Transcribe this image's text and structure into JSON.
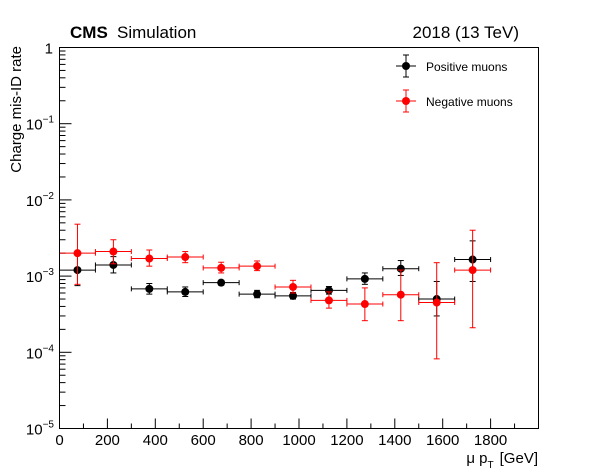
{
  "header": {
    "experiment": "CMS",
    "label": "Simulation",
    "condition": "2018 (13 TeV)"
  },
  "chart_data": {
    "type": "scatter",
    "title": "",
    "xlabel": "μ p",
    "xlabel_sub": "T",
    "xunit": "[GeV]",
    "ylabel": "Charge mis-ID rate",
    "xlim": [
      0,
      2000
    ],
    "ylim": [
      1e-05,
      1
    ],
    "yscale": "log",
    "grid": false,
    "legend_position": "top-right",
    "x_ticks": [
      0,
      200,
      400,
      600,
      800,
      1000,
      1200,
      1400,
      1600,
      1800
    ],
    "y_tick_labels": [
      {
        "value": 1e-05,
        "base": "10",
        "exp": "−5"
      },
      {
        "value": 0.0001,
        "base": "10",
        "exp": "−4"
      },
      {
        "value": 0.001,
        "base": "10",
        "exp": "−3"
      },
      {
        "value": 0.01,
        "base": "10",
        "exp": "−2"
      },
      {
        "value": 0.1,
        "base": "10",
        "exp": "−1"
      },
      {
        "value": 1,
        "base": "1",
        "exp": ""
      }
    ],
    "series": [
      {
        "name": "Positive muons",
        "color": "#000000",
        "points": [
          {
            "x": 75,
            "xlo": 0,
            "xhi": 150,
            "y": 0.0012,
            "ylo": 0.00075,
            "yhi": 0.002
          },
          {
            "x": 225,
            "xlo": 150,
            "xhi": 300,
            "y": 0.0014,
            "ylo": 0.0011,
            "yhi": 0.0018
          },
          {
            "x": 375,
            "xlo": 300,
            "xhi": 450,
            "y": 0.00068,
            "ylo": 0.00058,
            "yhi": 0.0008
          },
          {
            "x": 525,
            "xlo": 450,
            "xhi": 600,
            "y": 0.00062,
            "ylo": 0.00054,
            "yhi": 0.00072
          },
          {
            "x": 675,
            "xlo": 600,
            "xhi": 750,
            "y": 0.00082,
            "ylo": 0.00076,
            "yhi": 0.00088
          },
          {
            "x": 825,
            "xlo": 750,
            "xhi": 900,
            "y": 0.00058,
            "ylo": 0.00052,
            "yhi": 0.00065
          },
          {
            "x": 975,
            "xlo": 900,
            "xhi": 1050,
            "y": 0.00055,
            "ylo": 0.0005,
            "yhi": 0.00061
          },
          {
            "x": 1125,
            "xlo": 1050,
            "xhi": 1200,
            "y": 0.00065,
            "ylo": 0.00058,
            "yhi": 0.00073
          },
          {
            "x": 1275,
            "xlo": 1200,
            "xhi": 1350,
            "y": 0.00092,
            "ylo": 0.00078,
            "yhi": 0.0011
          },
          {
            "x": 1425,
            "xlo": 1350,
            "xhi": 1500,
            "y": 0.00125,
            "ylo": 0.00102,
            "yhi": 0.0016
          },
          {
            "x": 1575,
            "xlo": 1500,
            "xhi": 1650,
            "y": 0.0005,
            "ylo": 0.0003,
            "yhi": 0.00085
          },
          {
            "x": 1725,
            "xlo": 1650,
            "xhi": 1800,
            "y": 0.00165,
            "ylo": 0.00085,
            "yhi": 0.0029
          }
        ]
      },
      {
        "name": "Negative muons",
        "color": "#ff0000",
        "points": [
          {
            "x": 75,
            "xlo": 0,
            "xhi": 150,
            "y": 0.002,
            "ylo": 0.00078,
            "yhi": 0.0048
          },
          {
            "x": 225,
            "xlo": 150,
            "xhi": 300,
            "y": 0.0021,
            "ylo": 0.00145,
            "yhi": 0.003
          },
          {
            "x": 375,
            "xlo": 300,
            "xhi": 450,
            "y": 0.0017,
            "ylo": 0.00135,
            "yhi": 0.0022
          },
          {
            "x": 525,
            "xlo": 450,
            "xhi": 600,
            "y": 0.00178,
            "ylo": 0.0015,
            "yhi": 0.0021
          },
          {
            "x": 675,
            "xlo": 600,
            "xhi": 750,
            "y": 0.00128,
            "ylo": 0.0011,
            "yhi": 0.00152
          },
          {
            "x": 825,
            "xlo": 750,
            "xhi": 900,
            "y": 0.00135,
            "ylo": 0.00118,
            "yhi": 0.00158
          },
          {
            "x": 975,
            "xlo": 900,
            "xhi": 1050,
            "y": 0.00072,
            "ylo": 0.0006,
            "yhi": 0.00088
          },
          {
            "x": 1125,
            "xlo": 1050,
            "xhi": 1200,
            "y": 0.00048,
            "ylo": 0.00038,
            "yhi": 0.00062
          },
          {
            "x": 1275,
            "xlo": 1200,
            "xhi": 1350,
            "y": 0.00043,
            "ylo": 0.00026,
            "yhi": 0.0007
          },
          {
            "x": 1425,
            "xlo": 1350,
            "xhi": 1500,
            "y": 0.00057,
            "ylo": 0.00026,
            "yhi": 0.0012
          },
          {
            "x": 1575,
            "xlo": 1500,
            "xhi": 1650,
            "y": 0.00045,
            "ylo": 8.2e-05,
            "yhi": 0.0015
          },
          {
            "x": 1725,
            "xlo": 1650,
            "xhi": 1800,
            "y": 0.0012,
            "ylo": 0.00021,
            "yhi": 0.004
          }
        ]
      }
    ]
  }
}
